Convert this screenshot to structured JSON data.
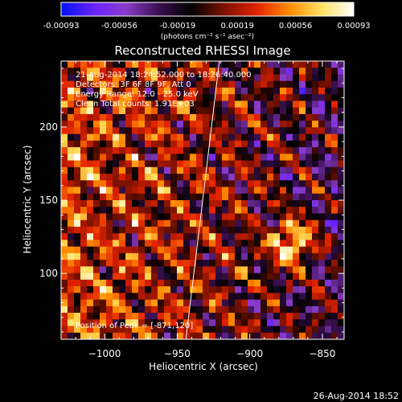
{
  "colorbar": {
    "ticks": [
      "-0.00093",
      "-0.00056",
      "-0.00019",
      "0.00019",
      "0.00056",
      "0.00093"
    ],
    "unit_label": "(photons cm⁻² s⁻¹ asec⁻²)",
    "colors": [
      "#0011ff",
      "#6a22ff",
      "#8a3cc8",
      "#3a1050",
      "#000000",
      "#7a1200",
      "#e02000",
      "#ff8a00",
      "#ffe060",
      "#ffffff"
    ]
  },
  "chart_data": {
    "type": "heatmap",
    "title": "Reconstructed RHESSI Image",
    "xlabel": "Heliocentric X (arcsec)",
    "ylabel": "Heliocentric Y (arcsec)",
    "xlim": [
      -1030,
      -835
    ],
    "ylim": [
      55,
      245
    ],
    "x_ticks": [
      -1000,
      -950,
      -900,
      -850
    ],
    "y_ticks": [
      100,
      150,
      200
    ],
    "x_tick_labels": [
      "−1000",
      "−950",
      "−900",
      "−850"
    ],
    "y_tick_labels": [
      "100",
      "150",
      "200"
    ],
    "value_range": [
      -0.00093,
      0.00093
    ],
    "peak_position": [
      -871,
      120
    ],
    "limb_line": [
      [
        -944,
        55
      ],
      [
        -930,
        170
      ],
      [
        -921,
        245
      ]
    ],
    "grid": false,
    "annotations": [
      "21-Aug-2014 18:24:52.000 to 18:26:40.000",
      "Detectors: 3F 6F 8F 9F, Att 0",
      "Energy Range: 12.0 - 25.0 keV",
      "Clean   Total counts: 1.91E+03",
      "Position of Peak = [-871,120]"
    ]
  },
  "footer": {
    "date_stamp": "26-Aug-2014 18:52"
  }
}
